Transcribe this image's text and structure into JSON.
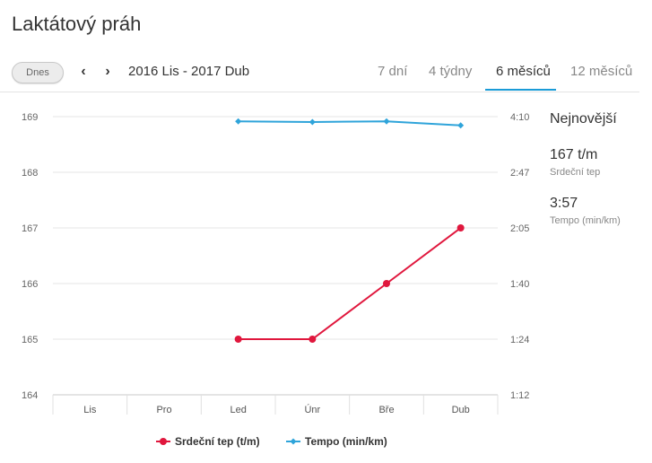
{
  "page": {
    "title": "Laktátový práh"
  },
  "toolbar": {
    "today_label": "Dnes",
    "prev_icon": "chevron-left-icon",
    "next_icon": "chevron-right-icon",
    "range_label": "2016 Lis - 2017 Dub",
    "tabs": [
      {
        "label": "7 dní",
        "active": false
      },
      {
        "label": "4 týdny",
        "active": false
      },
      {
        "label": "6 měsíců",
        "active": true
      },
      {
        "label": "12 měsíců",
        "active": false
      }
    ],
    "accent_color": "#1a9bd7"
  },
  "latest": {
    "heading": "Nejnovější",
    "heart_value": "167 t/m",
    "heart_label": "Srdeční tep",
    "pace_value": "3:57",
    "pace_label": "Tempo (min/km)"
  },
  "chart_data": {
    "type": "line",
    "categories": [
      "Lis",
      "Pro",
      "Led",
      "Únr",
      "Bře",
      "Dub"
    ],
    "left_axis": {
      "ticks": [
        "169",
        "168",
        "167",
        "166",
        "165",
        "164"
      ],
      "ylim": [
        164,
        169
      ]
    },
    "right_axis": {
      "ticks": [
        "4:10",
        "2:47",
        "2:05",
        "1:40",
        "1:24",
        "1:12"
      ]
    },
    "grid": true,
    "legend_position": "bottom",
    "series": [
      {
        "name": "Srdeční tep (t/m)",
        "axis": "left",
        "color": "#e0173d",
        "values": [
          null,
          null,
          165,
          165,
          166,
          167
        ]
      },
      {
        "name": "Tempo (min/km)",
        "axis": "right",
        "color": "#2fa4da",
        "values": [
          null,
          null,
          "4:03",
          "4:02",
          "4:03",
          "3:57"
        ]
      }
    ]
  }
}
